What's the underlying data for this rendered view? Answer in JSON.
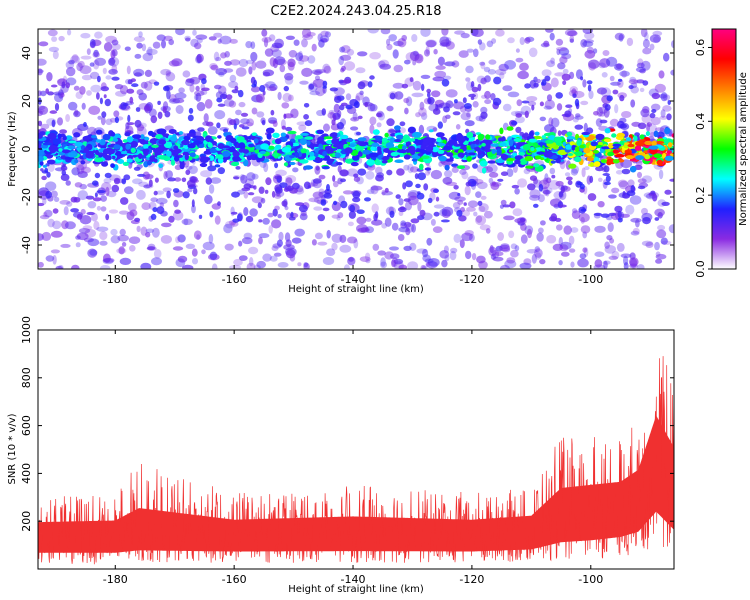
{
  "chart_data": [
    {
      "type": "heatmap",
      "title": "C2E2.2024.243.04.25.R18",
      "xlabel": "Height of straight line (km)",
      "ylabel": "Frequency (Hz)",
      "xlim": [
        -193,
        -86
      ],
      "ylim": [
        -50,
        50
      ],
      "xticks": [
        -180,
        -160,
        -140,
        -120,
        -100
      ],
      "yticks": [
        -40,
        -20,
        0,
        20,
        40
      ],
      "grid": false,
      "signal_band": {
        "center_hz": 0,
        "half_width_hz": 8,
        "amplitude_trend": [
          {
            "x": -193,
            "amp": 0.22
          },
          {
            "x": -160,
            "amp": 0.25
          },
          {
            "x": -130,
            "amp": 0.27
          },
          {
            "x": -110,
            "amp": 0.3
          },
          {
            "x": -100,
            "amp": 0.4
          },
          {
            "x": -90,
            "amp": 0.62
          },
          {
            "x": -86,
            "amp": 0.6
          }
        ]
      },
      "colorbar": {
        "label": "Normalized spectral amplitude",
        "range": [
          0.0,
          0.65
        ],
        "ticks": [
          0.0,
          0.2,
          0.4,
          0.6
        ],
        "colormap": [
          "#ffffff",
          "#8a2be2",
          "#2020ff",
          "#00ffff",
          "#00ff00",
          "#ffff00",
          "#ff8000",
          "#ff0000",
          "#ff0080"
        ]
      }
    },
    {
      "type": "line",
      "title": "",
      "xlabel": "Height of straight line (km)",
      "ylabel": "SNR (10 * v/v)",
      "xlim": [
        -193,
        -86
      ],
      "ylim": [
        0,
        1000
      ],
      "xticks": [
        -180,
        -160,
        -140,
        -120,
        -100
      ],
      "yticks": [
        200,
        400,
        600,
        800,
        1000
      ],
      "grid": false,
      "series": [
        {
          "color": "#f03030",
          "envelope": [
            {
              "x": -193,
              "min": 20,
              "mean": 140,
              "max": 300
            },
            {
              "x": -180,
              "min": 20,
              "mean": 140,
              "max": 320
            },
            {
              "x": -176,
              "min": 30,
              "mean": 150,
              "max": 450
            },
            {
              "x": -160,
              "min": 25,
              "mean": 145,
              "max": 320
            },
            {
              "x": -140,
              "min": 25,
              "mean": 150,
              "max": 350
            },
            {
              "x": -120,
              "min": 25,
              "mean": 145,
              "max": 320
            },
            {
              "x": -110,
              "min": 30,
              "mean": 160,
              "max": 340
            },
            {
              "x": -105,
              "min": 40,
              "mean": 220,
              "max": 560
            },
            {
              "x": -100,
              "min": 40,
              "mean": 240,
              "max": 560
            },
            {
              "x": -95,
              "min": 50,
              "mean": 260,
              "max": 560
            },
            {
              "x": -92,
              "min": 60,
              "mean": 300,
              "max": 630
            },
            {
              "x": -89,
              "min": 100,
              "mean": 450,
              "max": 1000
            },
            {
              "x": -86,
              "min": 60,
              "mean": 320,
              "max": 860
            }
          ]
        }
      ]
    }
  ]
}
